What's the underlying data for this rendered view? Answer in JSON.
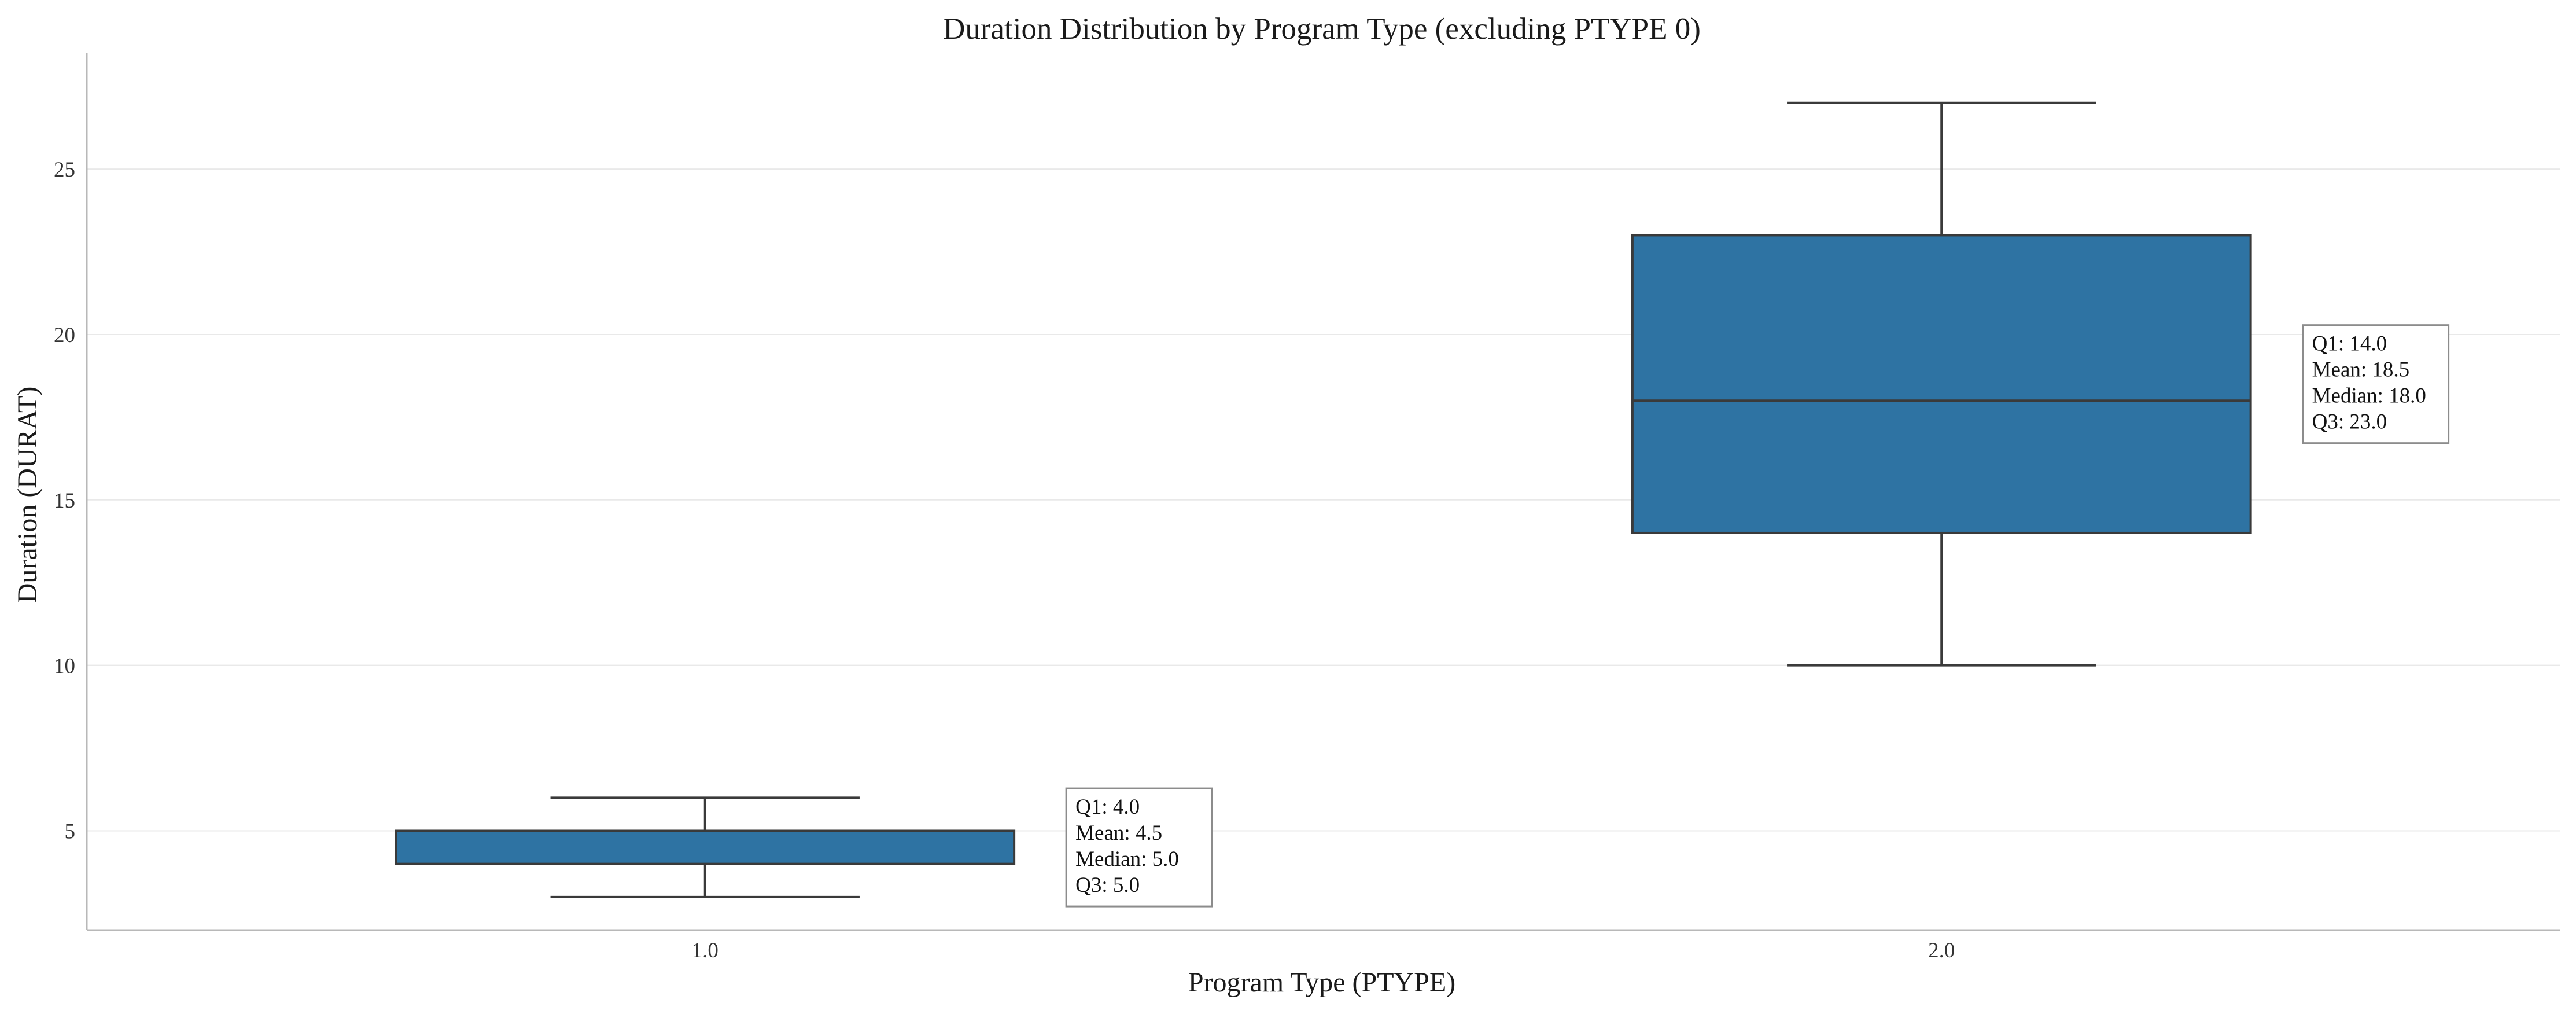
{
  "chart_data": {
    "type": "boxplot",
    "title": "Duration Distribution by Program Type (excluding PTYPE 0)",
    "xlabel": "Program Type (PTYPE)",
    "ylabel": "Duration (DURAT)",
    "categories": [
      "1.0",
      "2.0"
    ],
    "ylim": [
      2.0,
      28.5
    ],
    "yticks": [
      5,
      10,
      15,
      20,
      25
    ],
    "grid": {
      "y": true,
      "x": false
    },
    "colors": {
      "box": "#2e73a3",
      "box_edge": "#3a3a3a",
      "grid": "#e9e9e9",
      "axis": "#b8b8b8"
    },
    "boxes": [
      {
        "category": "1.0",
        "whisker_low": 3,
        "q1": 4,
        "median": 5,
        "q3": 5,
        "whisker_high": 6,
        "annotation": [
          "Q1: 4.0",
          "Mean: 4.5",
          "Median: 5.0",
          "Q3: 5.0"
        ]
      },
      {
        "category": "2.0",
        "whisker_low": 10,
        "q1": 14,
        "median": 18,
        "q3": 23,
        "whisker_high": 27,
        "annotation": [
          "Q1: 14.0",
          "Mean: 18.5",
          "Median: 18.0",
          "Q3: 23.0"
        ]
      }
    ]
  }
}
